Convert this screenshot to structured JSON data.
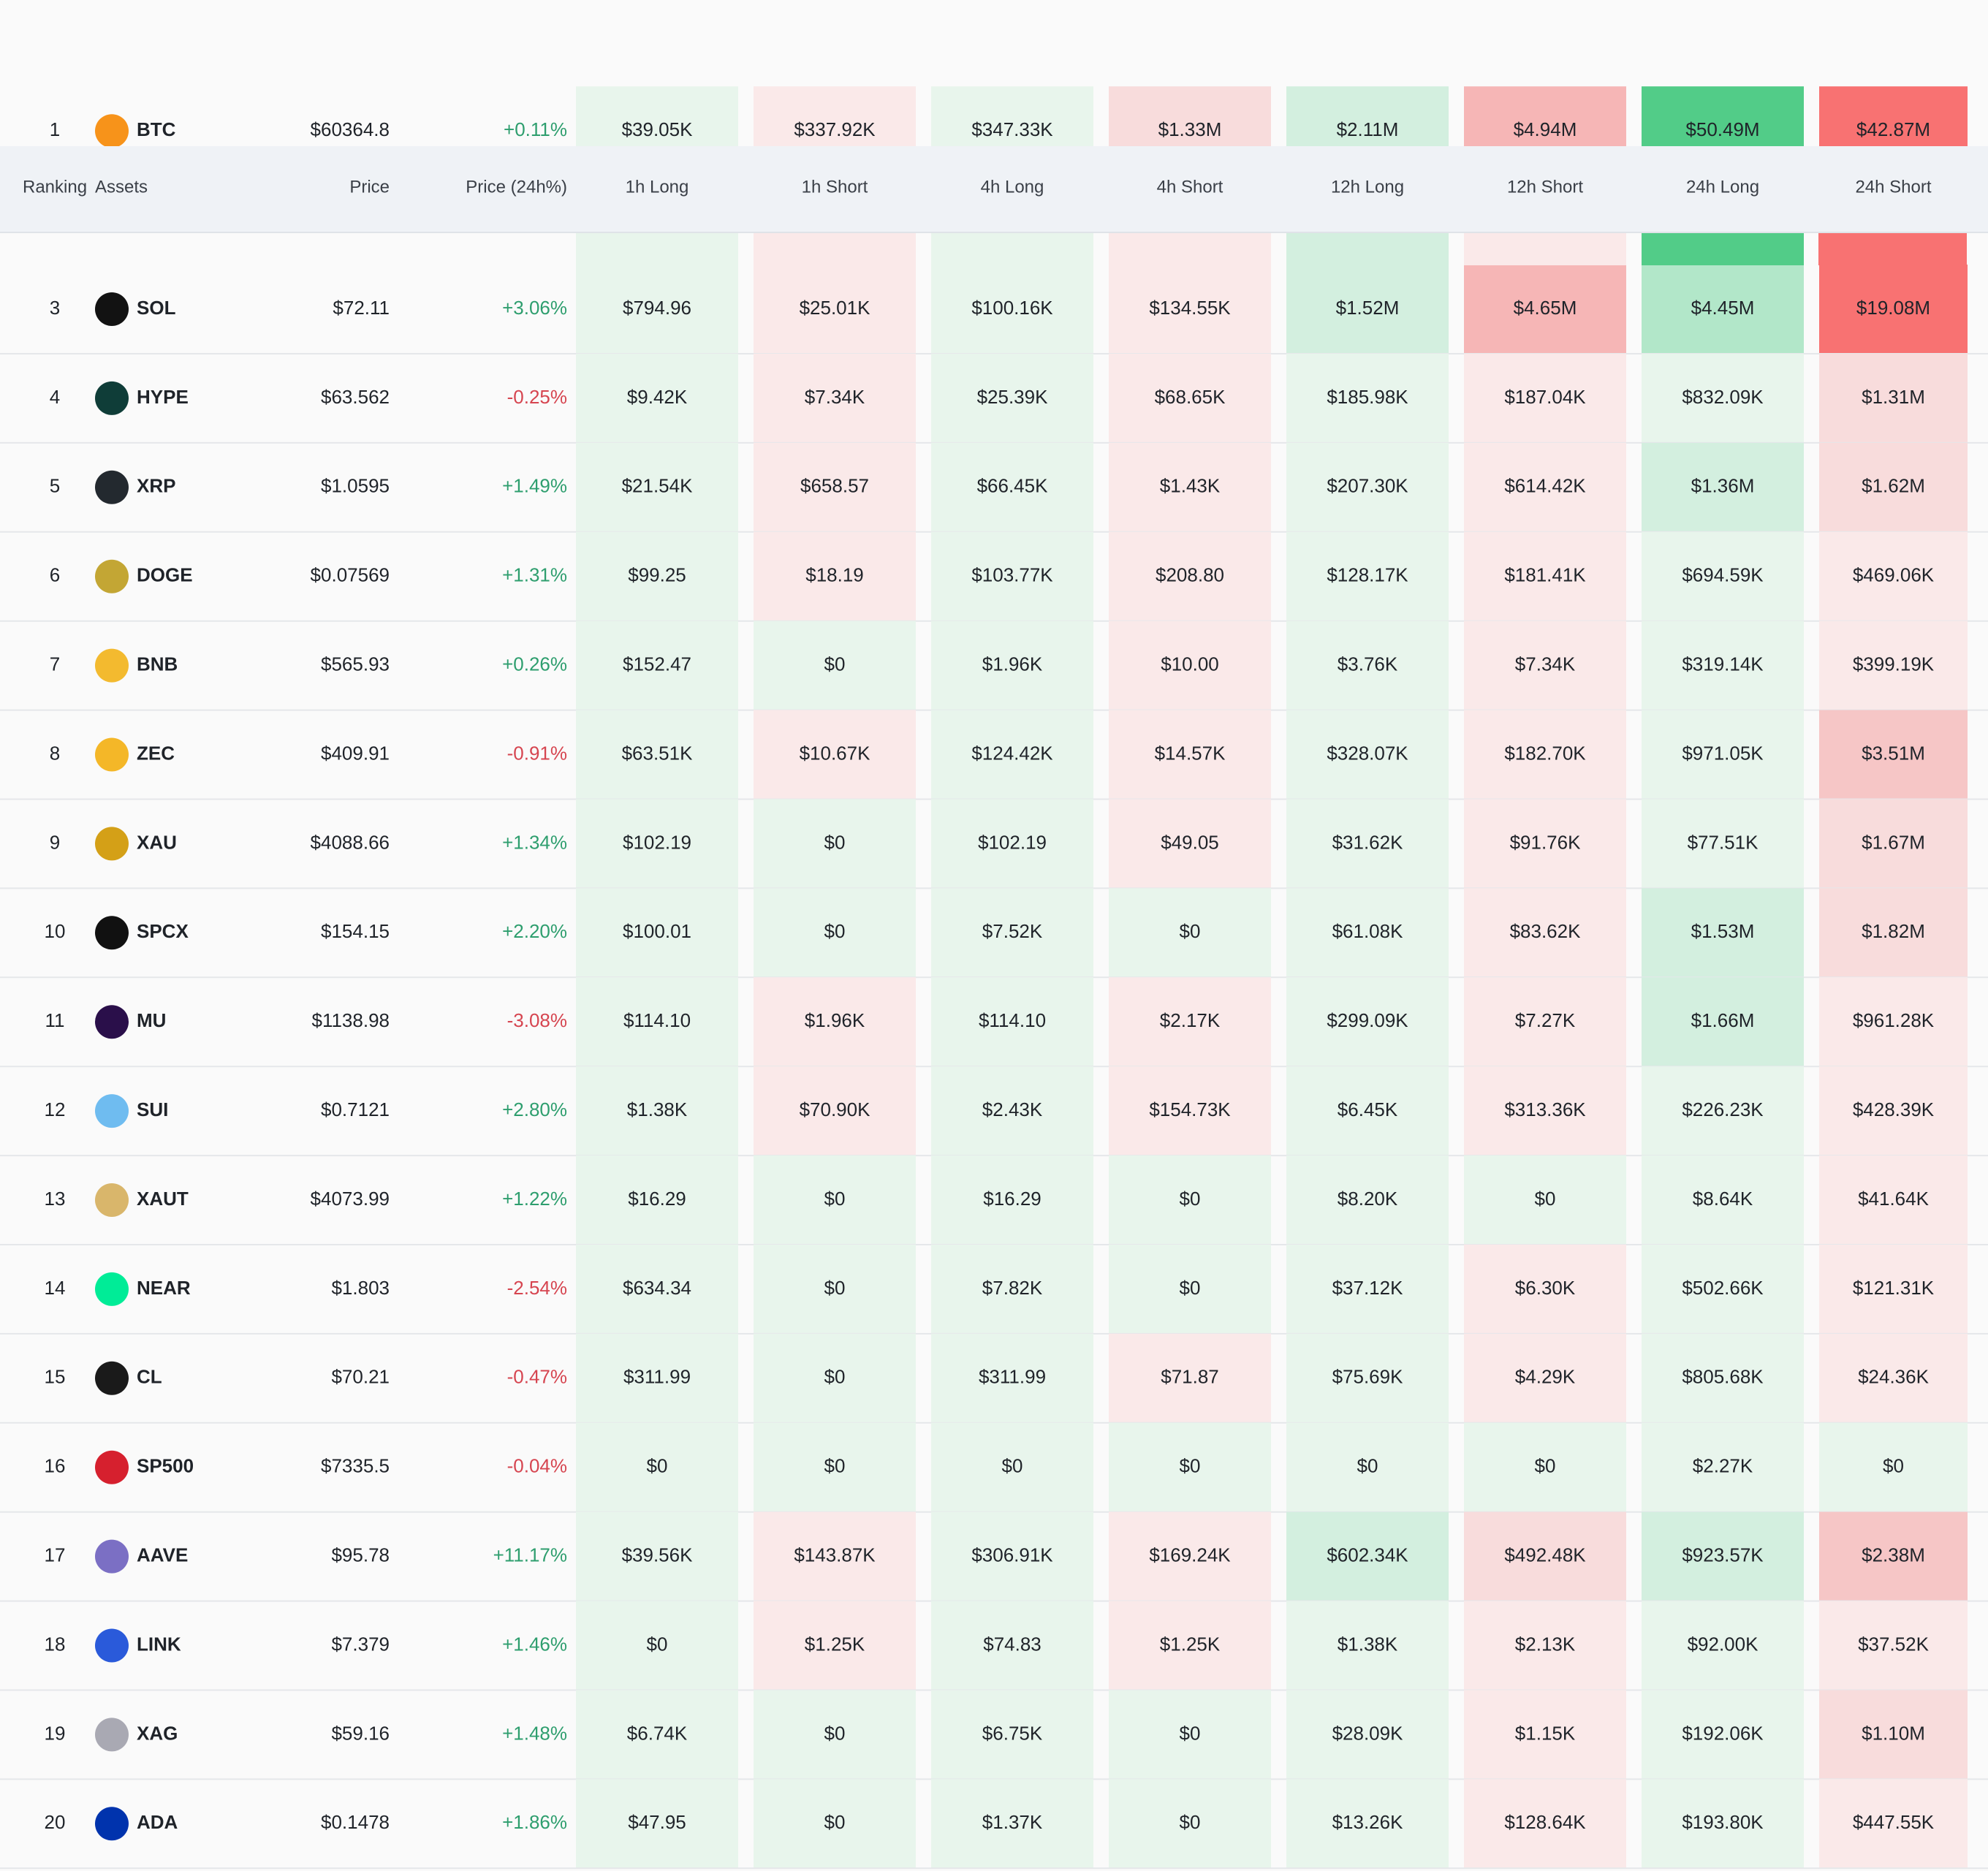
{
  "header": {
    "columns": [
      "Ranking",
      "Assets",
      "Price",
      "Price (24h%)",
      "1h Long",
      "1h Short",
      "4h Long",
      "4h Short",
      "12h Long",
      "12h Short",
      "24h Long",
      "24h Short"
    ]
  },
  "table": {
    "rows": [
      {
        "rank": 1,
        "asset": "BTC",
        "icon_color": "#f7931a",
        "price": "$60364.8",
        "change": "+0.11%",
        "values": [
          "$39.05K",
          "$337.92K",
          "$347.33K",
          "$1.33M",
          "$2.11M",
          "$4.94M",
          "$50.49M",
          "$42.87M"
        ],
        "colors": [
          "#e8f5ec",
          "#fae9e9",
          "#e8f5ec",
          "#f8dcdc",
          "#d3efdf",
          "#f6b6b6",
          "#52cc88",
          "#f87272"
        ]
      },
      {
        "rank": 3,
        "asset": "SOL",
        "icon_color": "#121212",
        "price": "$72.11",
        "change": "+3.06%",
        "values": [
          "$794.96",
          "$25.01K",
          "$100.16K",
          "$134.55K",
          "$1.52M",
          "$4.65M",
          "$4.45M",
          "$19.08M"
        ],
        "colors": [
          "#e8f5ec",
          "#fae9e9",
          "#e8f5ec",
          "#fae9e9",
          "#d3efdf",
          "#f6b6b6",
          "#b2e7c9",
          "#f87272"
        ]
      },
      {
        "rank": 4,
        "asset": "HYPE",
        "icon_color": "#0f3d38",
        "price": "$63.562",
        "change": "-0.25%",
        "values": [
          "$9.42K",
          "$7.34K",
          "$25.39K",
          "$68.65K",
          "$185.98K",
          "$187.04K",
          "$832.09K",
          "$1.31M"
        ],
        "colors": [
          "#e8f5ec",
          "#fae9e9",
          "#e8f5ec",
          "#fae9e9",
          "#e8f5ec",
          "#fae9e9",
          "#e8f5ec",
          "#f8dcdc"
        ]
      },
      {
        "rank": 5,
        "asset": "XRP",
        "icon_color": "#23292f",
        "price": "$1.0595",
        "change": "+1.49%",
        "values": [
          "$21.54K",
          "$658.57",
          "$66.45K",
          "$1.43K",
          "$207.30K",
          "$614.42K",
          "$1.36M",
          "$1.62M"
        ],
        "colors": [
          "#e8f5ec",
          "#fae9e9",
          "#e8f5ec",
          "#fae9e9",
          "#e8f5ec",
          "#fae9e9",
          "#d3efdf",
          "#f8dcdc"
        ]
      },
      {
        "rank": 6,
        "asset": "DOGE",
        "icon_color": "#c3a634",
        "price": "$0.07569",
        "change": "+1.31%",
        "values": [
          "$99.25",
          "$18.19",
          "$103.77K",
          "$208.80",
          "$128.17K",
          "$181.41K",
          "$694.59K",
          "$469.06K"
        ],
        "colors": [
          "#e8f5ec",
          "#fae9e9",
          "#e8f5ec",
          "#fae9e9",
          "#e8f5ec",
          "#fae9e9",
          "#e8f5ec",
          "#fae9e9"
        ]
      },
      {
        "rank": 7,
        "asset": "BNB",
        "icon_color": "#f3ba2f",
        "price": "$565.93",
        "change": "+0.26%",
        "values": [
          "$152.47",
          "$0",
          "$1.96K",
          "$10.00",
          "$3.76K",
          "$7.34K",
          "$319.14K",
          "$399.19K"
        ],
        "colors": [
          "#e8f5ec",
          "#e8f5ec",
          "#e8f5ec",
          "#fae9e9",
          "#e8f5ec",
          "#fae9e9",
          "#e8f5ec",
          "#fae9e9"
        ]
      },
      {
        "rank": 8,
        "asset": "ZEC",
        "icon_color": "#f4b728",
        "price": "$409.91",
        "change": "-0.91%",
        "values": [
          "$63.51K",
          "$10.67K",
          "$124.42K",
          "$14.57K",
          "$328.07K",
          "$182.70K",
          "$971.05K",
          "$3.51M"
        ],
        "colors": [
          "#e8f5ec",
          "#fae9e9",
          "#e8f5ec",
          "#fae9e9",
          "#e8f5ec",
          "#fae9e9",
          "#e8f5ec",
          "#f6c6c6"
        ]
      },
      {
        "rank": 9,
        "asset": "XAU",
        "icon_color": "#d4a017",
        "price": "$4088.66",
        "change": "+1.34%",
        "values": [
          "$102.19",
          "$0",
          "$102.19",
          "$49.05",
          "$31.62K",
          "$91.76K",
          "$77.51K",
          "$1.67M"
        ],
        "colors": [
          "#e8f5ec",
          "#e8f5ec",
          "#e8f5ec",
          "#fae9e9",
          "#e8f5ec",
          "#fae9e9",
          "#e8f5ec",
          "#f8dcdc"
        ]
      },
      {
        "rank": 10,
        "asset": "SPCX",
        "icon_color": "#111111",
        "price": "$154.15",
        "change": "+2.20%",
        "values": [
          "$100.01",
          "$0",
          "$7.52K",
          "$0",
          "$61.08K",
          "$83.62K",
          "$1.53M",
          "$1.82M"
        ],
        "colors": [
          "#e8f5ec",
          "#e8f5ec",
          "#e8f5ec",
          "#e8f5ec",
          "#e8f5ec",
          "#fae9e9",
          "#d3efdf",
          "#f8dcdc"
        ]
      },
      {
        "rank": 11,
        "asset": "MU",
        "icon_color": "#2a0f4a",
        "price": "$1138.98",
        "change": "-3.08%",
        "values": [
          "$114.10",
          "$1.96K",
          "$114.10",
          "$2.17K",
          "$299.09K",
          "$7.27K",
          "$1.66M",
          "$961.28K"
        ],
        "colors": [
          "#e8f5ec",
          "#fae9e9",
          "#e8f5ec",
          "#fae9e9",
          "#e8f5ec",
          "#fae9e9",
          "#d3efdf",
          "#fae9e9"
        ]
      },
      {
        "rank": 12,
        "asset": "SUI",
        "icon_color": "#6fbcf0",
        "price": "$0.7121",
        "change": "+2.80%",
        "values": [
          "$1.38K",
          "$70.90K",
          "$2.43K",
          "$154.73K",
          "$6.45K",
          "$313.36K",
          "$226.23K",
          "$428.39K"
        ],
        "colors": [
          "#e8f5ec",
          "#fae9e9",
          "#e8f5ec",
          "#fae9e9",
          "#e8f5ec",
          "#fae9e9",
          "#e8f5ec",
          "#fae9e9"
        ]
      },
      {
        "rank": 13,
        "asset": "XAUT",
        "icon_color": "#d9b66b",
        "price": "$4073.99",
        "change": "+1.22%",
        "values": [
          "$16.29",
          "$0",
          "$16.29",
          "$0",
          "$8.20K",
          "$0",
          "$8.64K",
          "$41.64K"
        ],
        "colors": [
          "#e8f5ec",
          "#e8f5ec",
          "#e8f5ec",
          "#e8f5ec",
          "#e8f5ec",
          "#e8f5ec",
          "#e8f5ec",
          "#fae9e9"
        ]
      },
      {
        "rank": 14,
        "asset": "NEAR",
        "icon_color": "#00ec97",
        "price": "$1.803",
        "change": "-2.54%",
        "values": [
          "$634.34",
          "$0",
          "$7.82K",
          "$0",
          "$37.12K",
          "$6.30K",
          "$502.66K",
          "$121.31K"
        ],
        "colors": [
          "#e8f5ec",
          "#e8f5ec",
          "#e8f5ec",
          "#e8f5ec",
          "#e8f5ec",
          "#fae9e9",
          "#e8f5ec",
          "#fae9e9"
        ]
      },
      {
        "rank": 15,
        "asset": "CL",
        "icon_color": "#1a1a1a",
        "price": "$70.21",
        "change": "-0.47%",
        "values": [
          "$311.99",
          "$0",
          "$311.99",
          "$71.87",
          "$75.69K",
          "$4.29K",
          "$805.68K",
          "$24.36K"
        ],
        "colors": [
          "#e8f5ec",
          "#e8f5ec",
          "#e8f5ec",
          "#fae9e9",
          "#e8f5ec",
          "#fae9e9",
          "#e8f5ec",
          "#fae9e9"
        ]
      },
      {
        "rank": 16,
        "asset": "SP500",
        "icon_color": "#d6202e",
        "price": "$7335.5",
        "change": "-0.04%",
        "values": [
          "$0",
          "$0",
          "$0",
          "$0",
          "$0",
          "$0",
          "$2.27K",
          "$0"
        ],
        "colors": [
          "#e8f5ec",
          "#e8f5ec",
          "#e8f5ec",
          "#e8f5ec",
          "#e8f5ec",
          "#e8f5ec",
          "#e8f5ec",
          "#e8f5ec"
        ]
      },
      {
        "rank": 17,
        "asset": "AAVE",
        "icon_color": "#7b6fc4",
        "price": "$95.78",
        "change": "+11.17%",
        "values": [
          "$39.56K",
          "$143.87K",
          "$306.91K",
          "$169.24K",
          "$602.34K",
          "$492.48K",
          "$923.57K",
          "$2.38M"
        ],
        "colors": [
          "#e8f5ec",
          "#fae9e9",
          "#e8f5ec",
          "#fae9e9",
          "#d3efdf",
          "#f8dcdc",
          "#d3efdf",
          "#f6c6c6"
        ]
      },
      {
        "rank": 18,
        "asset": "LINK",
        "icon_color": "#2a5ada",
        "price": "$7.379",
        "change": "+1.46%",
        "values": [
          "$0",
          "$1.25K",
          "$74.83",
          "$1.25K",
          "$1.38K",
          "$2.13K",
          "$92.00K",
          "$37.52K"
        ],
        "colors": [
          "#e8f5ec",
          "#fae9e9",
          "#e8f5ec",
          "#fae9e9",
          "#e8f5ec",
          "#fae9e9",
          "#e8f5ec",
          "#fae9e9"
        ]
      },
      {
        "rank": 19,
        "asset": "XAG",
        "icon_color": "#a9a9b3",
        "price": "$59.16",
        "change": "+1.48%",
        "values": [
          "$6.74K",
          "$0",
          "$6.75K",
          "$0",
          "$28.09K",
          "$1.15K",
          "$192.06K",
          "$1.10M"
        ],
        "colors": [
          "#e8f5ec",
          "#e8f5ec",
          "#e8f5ec",
          "#e8f5ec",
          "#e8f5ec",
          "#fae9e9",
          "#e8f5ec",
          "#f8dcdc"
        ]
      },
      {
        "rank": 20,
        "asset": "ADA",
        "icon_color": "#0033ad",
        "price": "$0.1478",
        "change": "+1.86%",
        "values": [
          "$47.95",
          "$0",
          "$1.37K",
          "$0",
          "$13.26K",
          "$128.64K",
          "$193.80K",
          "$447.55K"
        ],
        "colors": [
          "#e8f5ec",
          "#e8f5ec",
          "#e8f5ec",
          "#e8f5ec",
          "#e8f5ec",
          "#fae9e9",
          "#e8f5ec",
          "#fae9e9"
        ]
      }
    ]
  }
}
